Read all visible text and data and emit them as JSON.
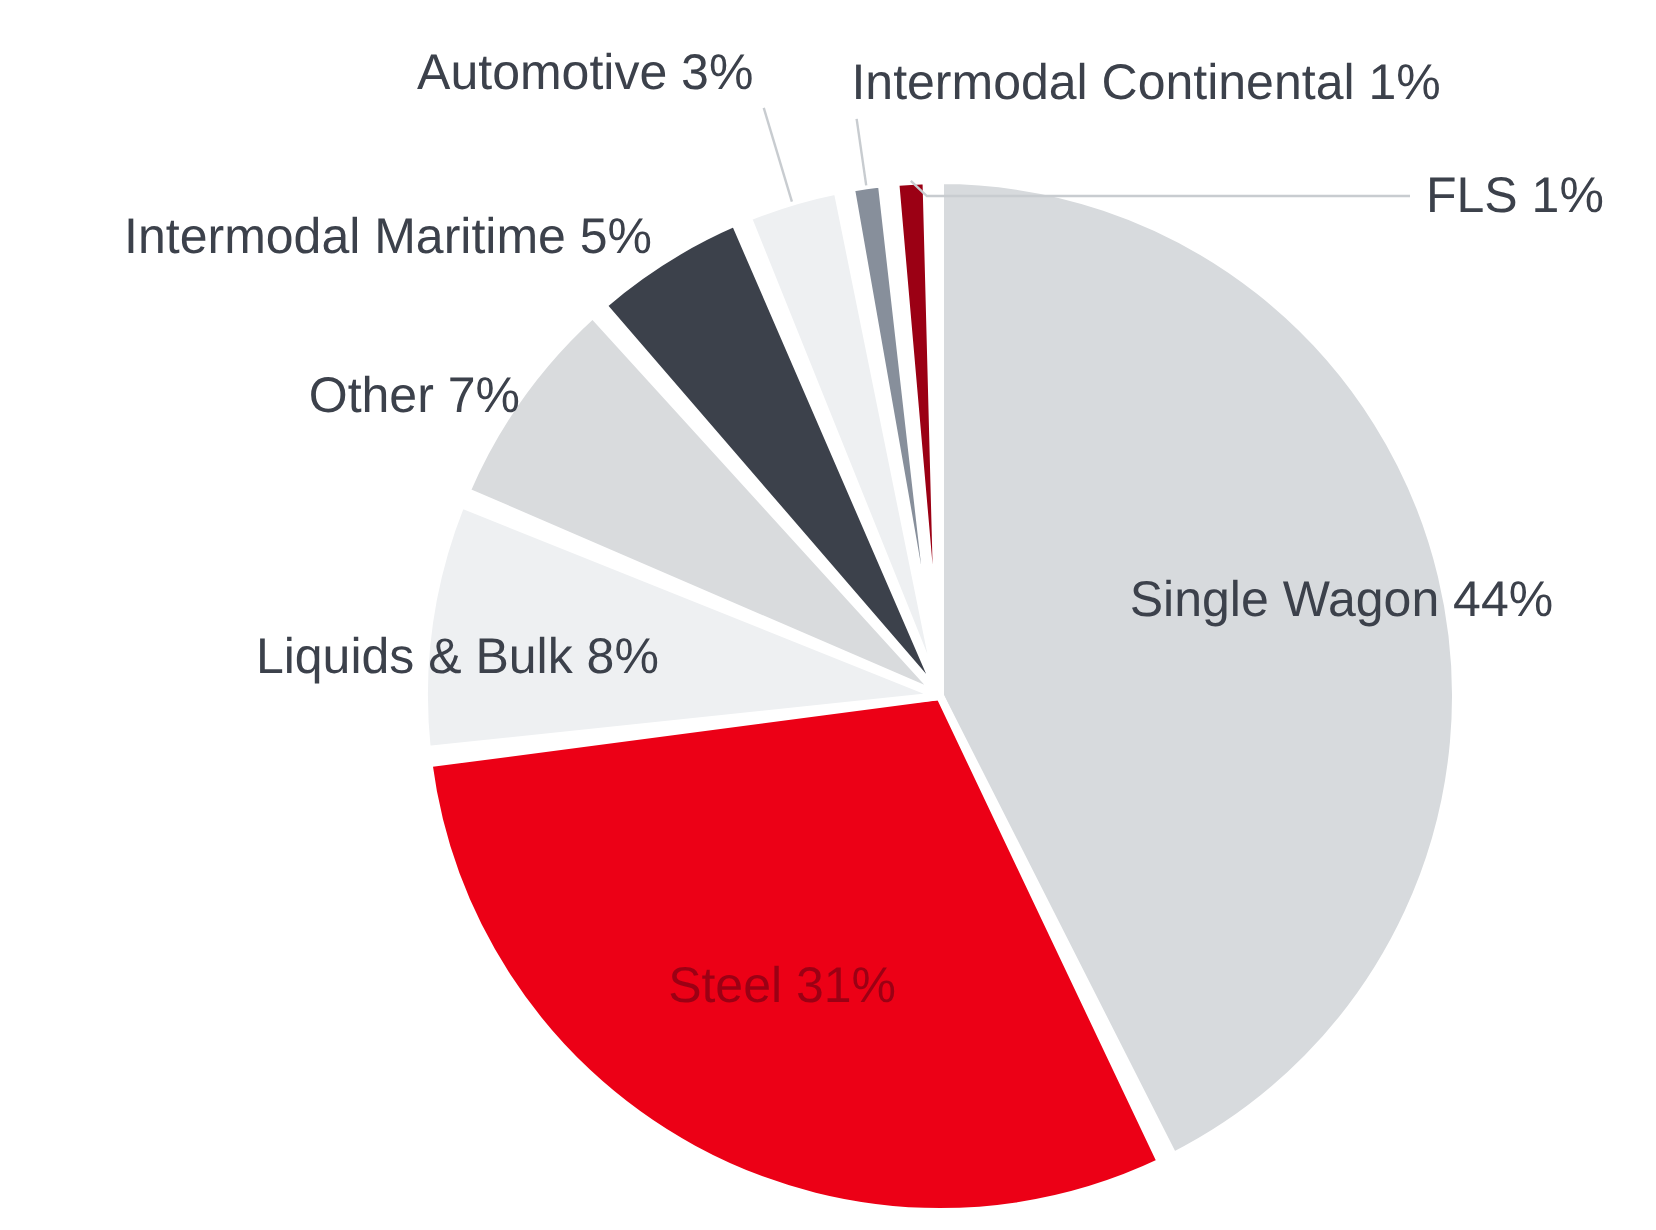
{
  "chart_data": {
    "type": "pie",
    "categories": [
      "Single Wagon 44%",
      "Steel 31%",
      "Liquids & Bulk 8%",
      "Other 7%",
      "Intermodal Maritime 5%",
      "Automotive 3%",
      "Intermodal Continental 1%",
      "FLS 1%"
    ],
    "values": [
      44,
      31,
      8,
      7,
      5,
      3,
      1,
      1
    ],
    "colors": [
      "#d7dadd",
      "#ec0016",
      "#eef0f2",
      "#d9dbdd",
      "#3c414b",
      "#eef0f2",
      "#878f9b",
      "#9b0014"
    ]
  }
}
